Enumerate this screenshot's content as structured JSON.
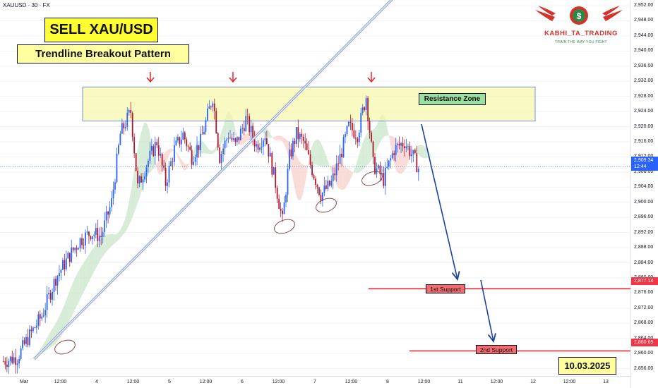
{
  "header": {
    "symbol": "XAUUSD · 30 · FX"
  },
  "title": "SELL XAU/USD",
  "subtitle": "Trendline Breakout Pattern",
  "date_label": "10.03.2025",
  "brand": {
    "name": "KABHI_TA_TRADING",
    "tagline": "TRAIN THE WAY YOU FIGHT",
    "icon": "dollar-coin-icon",
    "colors": {
      "red": "#d6312b",
      "green": "#2b8a44"
    }
  },
  "colors": {
    "up": "#2962ff",
    "down": "#b2182b",
    "resistance": "#f6f6a8",
    "support_line": "#e02b39",
    "arrow": "#1d3f9e",
    "cloud_green": "#c8e6c9",
    "cloud_red": "#f7cfc9"
  },
  "chart_data": {
    "type": "candlestick",
    "instrument": "XAUUSD",
    "timeframe": "30",
    "y_axis": {
      "range": [
        2853,
        2952
      ],
      "ticks": [
        "2,952.00",
        "2,948.00",
        "2,944.00",
        "2,940.00",
        "2,936.00",
        "2,932.00",
        "2,928.00",
        "2,924.00",
        "2,920.00",
        "2,916.00",
        "2,912.00",
        "2,908.00",
        "2,904.00",
        "2,900.00",
        "2,896.00",
        "2,892.00",
        "2,888.00",
        "2,884.00",
        "2,880.00",
        "2,876.00",
        "2,872.00",
        "2,868.00",
        "2,864.00",
        "2,860.00",
        "2,856.00"
      ]
    },
    "x_axis": {
      "ticks": [
        "Mar",
        "12:00",
        "4",
        "12:00",
        "5",
        "12:00",
        "6",
        "12:00",
        "7",
        "12:00",
        "8",
        "12:00",
        "11",
        "12:00",
        "12",
        "12:00",
        "13"
      ]
    },
    "current_price": {
      "value": "2,909.34",
      "countdown": "12:44"
    },
    "resistance_zone": {
      "label": "Resistance Zone",
      "low": 2921.5,
      "high": 2930.5
    },
    "supports": [
      {
        "label": "1st Support",
        "value": 2877.14,
        "price_label": "2,877.14"
      },
      {
        "label": "2nd Support",
        "value": 2860.69,
        "price_label": "2,860.69"
      }
    ],
    "trendline": {
      "start": {
        "bar": 18,
        "price": 2858.5
      },
      "end": {
        "bar": 170,
        "price": 2929
      }
    },
    "path_keypoints": [
      [
        0,
        2858
      ],
      [
        8,
        2859
      ],
      [
        14,
        2864
      ],
      [
        22,
        2870
      ],
      [
        30,
        2880
      ],
      [
        38,
        2886
      ],
      [
        44,
        2890
      ],
      [
        50,
        2892
      ],
      [
        56,
        2891
      ],
      [
        62,
        2900
      ],
      [
        67,
        2918
      ],
      [
        73,
        2924
      ],
      [
        77,
        2904
      ],
      [
        82,
        2910
      ],
      [
        88,
        2916
      ],
      [
        93,
        2905
      ],
      [
        98,
        2914
      ],
      [
        103,
        2918
      ],
      [
        108,
        2912
      ],
      [
        113,
        2916
      ],
      [
        120,
        2928
      ],
      [
        124,
        2912
      ],
      [
        129,
        2918
      ],
      [
        133,
        2915
      ],
      [
        139,
        2922
      ],
      [
        145,
        2915
      ],
      [
        150,
        2918
      ],
      [
        156,
        2905
      ],
      [
        160,
        2895
      ],
      [
        164,
        2912
      ],
      [
        168,
        2918
      ],
      [
        172,
        2916
      ],
      [
        176,
        2910
      ],
      [
        182,
        2902
      ],
      [
        188,
        2905
      ],
      [
        193,
        2912
      ],
      [
        198,
        2920
      ],
      [
        203,
        2918
      ],
      [
        208,
        2928
      ],
      [
        212,
        2910
      ],
      [
        218,
        2906
      ],
      [
        224,
        2914
      ],
      [
        230,
        2916
      ],
      [
        235,
        2912
      ],
      [
        238,
        2909
      ]
    ]
  }
}
